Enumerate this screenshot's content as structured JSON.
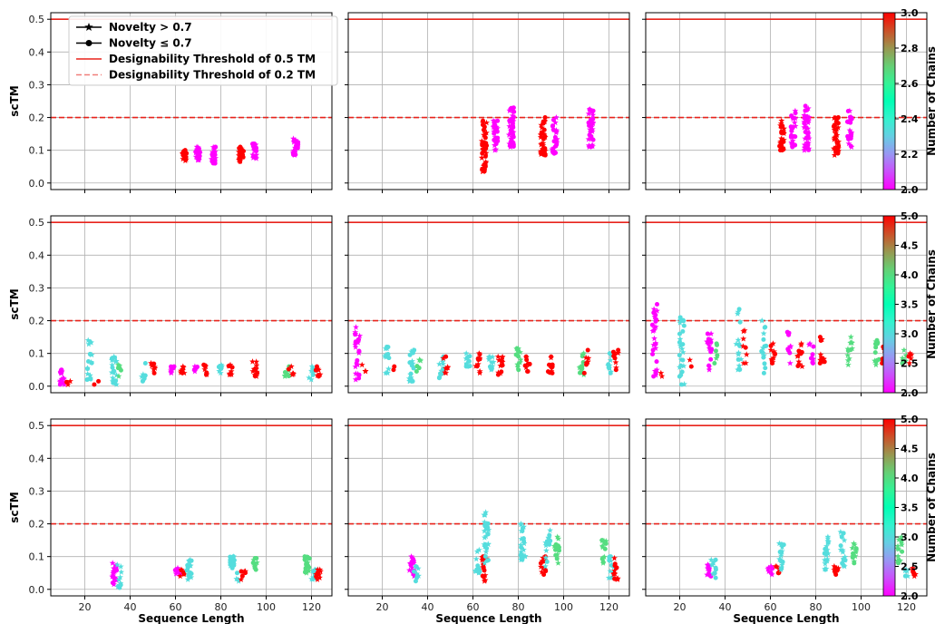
{
  "chart_data": {
    "type": "scatter",
    "grid": true,
    "rows": [
      {
        "colorbar": {
          "label": "Number of Chains",
          "min": 2.0,
          "max": 3.0,
          "ticks": [
            "2.0",
            "2.2",
            "2.4",
            "2.6",
            "2.8",
            "3.0"
          ]
        }
      },
      {
        "colorbar": {
          "label": "Number of Chains",
          "min": 2.0,
          "max": 5.0,
          "ticks": [
            "2.0",
            "2.5",
            "3.0",
            "3.5",
            "4.0",
            "4.5",
            "5.0"
          ]
        }
      },
      {
        "colorbar": {
          "label": "Number of Chains",
          "min": 2.0,
          "max": 5.0,
          "ticks": [
            "2.0",
            "2.5",
            "3.0",
            "3.5",
            "4.0",
            "4.5",
            "5.0"
          ]
        }
      }
    ],
    "ylabel": "scTM",
    "xlabel": "Sequence Length",
    "xlim": [
      5,
      129
    ],
    "ylim": [
      -0.02,
      0.52
    ],
    "xticks": [
      "20",
      "40",
      "60",
      "80",
      "100",
      "120"
    ],
    "yticks": [
      "0.0",
      "0.1",
      "0.2",
      "0.3",
      "0.4",
      "0.5"
    ],
    "threshold_solid": 0.5,
    "threshold_dashed": 0.2,
    "legend": {
      "position": "top-left",
      "entries": [
        {
          "label": "Novelty > 0.7",
          "marker": "star"
        },
        {
          "label": "Novelty ≤ 0.7",
          "marker": "circle"
        },
        {
          "label": "Designability Threshold of 0.5 TM",
          "style": "solid",
          "color": "#e8231b"
        },
        {
          "label": "Designability Threshold of 0.2 TM",
          "style": "dashed",
          "color": "#f07f7a"
        }
      ]
    },
    "colormap": "rainbow",
    "threshold_color": "#e8231b",
    "panels": [
      {
        "row": 0,
        "col": 0,
        "clusters": [
          {
            "x": 64,
            "c": 3,
            "lo": 0.068,
            "hi": 0.1,
            "n": 20
          },
          {
            "x": 70,
            "c": 2,
            "lo": 0.07,
            "hi": 0.11,
            "n": 20
          },
          {
            "x": 77,
            "c": 2,
            "lo": 0.06,
            "hi": 0.11,
            "n": 22
          },
          {
            "x": 89,
            "c": 3,
            "lo": 0.065,
            "hi": 0.11,
            "n": 24
          },
          {
            "x": 95,
            "c": 2,
            "lo": 0.075,
            "hi": 0.12,
            "n": 20
          },
          {
            "x": 113,
            "c": 2,
            "lo": 0.085,
            "hi": 0.135,
            "n": 26
          }
        ]
      },
      {
        "row": 0,
        "col": 1,
        "clusters": [
          {
            "x": 65,
            "c": 3,
            "lo": 0.035,
            "hi": 0.19,
            "n": 40
          },
          {
            "x": 70,
            "c": 2,
            "lo": 0.1,
            "hi": 0.19,
            "n": 24
          },
          {
            "x": 77,
            "c": 2,
            "lo": 0.11,
            "hi": 0.23,
            "n": 40
          },
          {
            "x": 91,
            "c": 3,
            "lo": 0.085,
            "hi": 0.2,
            "n": 40
          },
          {
            "x": 96,
            "c": 2,
            "lo": 0.09,
            "hi": 0.2,
            "n": 26
          },
          {
            "x": 112,
            "c": 2,
            "lo": 0.11,
            "hi": 0.225,
            "n": 36
          }
        ]
      },
      {
        "row": 0,
        "col": 2,
        "clusters": [
          {
            "x": 65,
            "c": 3,
            "lo": 0.1,
            "hi": 0.19,
            "n": 28
          },
          {
            "x": 70,
            "c": 2,
            "lo": 0.11,
            "hi": 0.22,
            "n": 24
          },
          {
            "x": 76,
            "c": 2,
            "lo": 0.1,
            "hi": 0.235,
            "n": 40
          },
          {
            "x": 89,
            "c": 3,
            "lo": 0.085,
            "hi": 0.2,
            "n": 36
          },
          {
            "x": 95,
            "c": 2,
            "lo": 0.11,
            "hi": 0.22,
            "n": 24
          },
          {
            "x": 113,
            "c": 2,
            "lo": 0.12,
            "hi": 0.21,
            "n": 24
          }
        ]
      },
      {
        "row": 1,
        "col": 0,
        "clusters": [
          {
            "x": 10,
            "c": 2,
            "lo": 0.005,
            "hi": 0.05,
            "n": 16
          },
          {
            "x": 13,
            "c": 5,
            "lo": 0.005,
            "hi": 0.015,
            "n": 3
          },
          {
            "x": 22,
            "c": 3,
            "lo": 0.02,
            "hi": 0.14,
            "n": 18
          },
          {
            "x": 25,
            "c": 5,
            "lo": 0.005,
            "hi": 0.015,
            "n": 2
          },
          {
            "x": 33,
            "c": 3,
            "lo": 0.005,
            "hi": 0.09,
            "n": 20
          },
          {
            "x": 35,
            "c": 4,
            "lo": 0.03,
            "hi": 0.065,
            "n": 6
          },
          {
            "x": 46,
            "c": 3,
            "lo": 0.015,
            "hi": 0.07,
            "n": 10
          },
          {
            "x": 50,
            "c": 5,
            "lo": 0.04,
            "hi": 0.07,
            "n": 8
          },
          {
            "x": 59,
            "c": 2,
            "lo": 0.04,
            "hi": 0.06,
            "n": 8
          },
          {
            "x": 63,
            "c": 5,
            "lo": 0.04,
            "hi": 0.06,
            "n": 8
          },
          {
            "x": 69,
            "c": 2,
            "lo": 0.045,
            "hi": 0.06,
            "n": 6
          },
          {
            "x": 73,
            "c": 5,
            "lo": 0.035,
            "hi": 0.065,
            "n": 8
          },
          {
            "x": 80,
            "c": 3,
            "lo": 0.04,
            "hi": 0.065,
            "n": 8
          },
          {
            "x": 84,
            "c": 5,
            "lo": 0.035,
            "hi": 0.065,
            "n": 10
          },
          {
            "x": 95,
            "c": 5,
            "lo": 0.03,
            "hi": 0.075,
            "n": 14
          },
          {
            "x": 109,
            "c": 4,
            "lo": 0.03,
            "hi": 0.06,
            "n": 8
          },
          {
            "x": 111,
            "c": 5,
            "lo": 0.035,
            "hi": 0.06,
            "n": 6
          },
          {
            "x": 120,
            "c": 3,
            "lo": 0.02,
            "hi": 0.06,
            "n": 10
          },
          {
            "x": 123,
            "c": 5,
            "lo": 0.03,
            "hi": 0.06,
            "n": 8
          }
        ]
      },
      {
        "row": 1,
        "col": 1,
        "clusters": [
          {
            "x": 9,
            "c": 2,
            "lo": 0.02,
            "hi": 0.18,
            "n": 24
          },
          {
            "x": 12,
            "c": 5,
            "lo": 0.045,
            "hi": 0.065,
            "n": 3
          },
          {
            "x": 22,
            "c": 3,
            "lo": 0.04,
            "hi": 0.12,
            "n": 14
          },
          {
            "x": 25,
            "c": 5,
            "lo": 0.05,
            "hi": 0.06,
            "n": 2
          },
          {
            "x": 33,
            "c": 3,
            "lo": 0.015,
            "hi": 0.11,
            "n": 18
          },
          {
            "x": 36,
            "c": 4,
            "lo": 0.045,
            "hi": 0.08,
            "n": 6
          },
          {
            "x": 46,
            "c": 3,
            "lo": 0.025,
            "hi": 0.09,
            "n": 12
          },
          {
            "x": 48,
            "c": 5,
            "lo": 0.04,
            "hi": 0.09,
            "n": 8
          },
          {
            "x": 58,
            "c": 3,
            "lo": 0.06,
            "hi": 0.1,
            "n": 10
          },
          {
            "x": 62,
            "c": 5,
            "lo": 0.04,
            "hi": 0.1,
            "n": 12
          },
          {
            "x": 68,
            "c": 3,
            "lo": 0.05,
            "hi": 0.09,
            "n": 10
          },
          {
            "x": 72,
            "c": 5,
            "lo": 0.035,
            "hi": 0.09,
            "n": 14
          },
          {
            "x": 80,
            "c": 4,
            "lo": 0.05,
            "hi": 0.115,
            "n": 14
          },
          {
            "x": 84,
            "c": 5,
            "lo": 0.045,
            "hi": 0.09,
            "n": 10
          },
          {
            "x": 94,
            "c": 5,
            "lo": 0.04,
            "hi": 0.09,
            "n": 12
          },
          {
            "x": 108,
            "c": 4,
            "lo": 0.035,
            "hi": 0.1,
            "n": 12
          },
          {
            "x": 110,
            "c": 5,
            "lo": 0.04,
            "hi": 0.11,
            "n": 8
          },
          {
            "x": 120,
            "c": 3,
            "lo": 0.04,
            "hi": 0.1,
            "n": 10
          },
          {
            "x": 123,
            "c": 5,
            "lo": 0.05,
            "hi": 0.11,
            "n": 10
          }
        ]
      },
      {
        "row": 1,
        "col": 2,
        "clusters": [
          {
            "x": 9,
            "c": 2,
            "lo": 0.03,
            "hi": 0.25,
            "n": 26
          },
          {
            "x": 12,
            "c": 5,
            "lo": 0.03,
            "hi": 0.04,
            "n": 2
          },
          {
            "x": 21,
            "c": 3,
            "lo": 0.005,
            "hi": 0.21,
            "n": 26
          },
          {
            "x": 25,
            "c": 5,
            "lo": 0.06,
            "hi": 0.08,
            "n": 2
          },
          {
            "x": 33,
            "c": 2,
            "lo": 0.05,
            "hi": 0.16,
            "n": 16
          },
          {
            "x": 36,
            "c": 4,
            "lo": 0.07,
            "hi": 0.13,
            "n": 6
          },
          {
            "x": 46,
            "c": 3,
            "lo": 0.05,
            "hi": 0.235,
            "n": 16
          },
          {
            "x": 49,
            "c": 5,
            "lo": 0.07,
            "hi": 0.17,
            "n": 8
          },
          {
            "x": 57,
            "c": 3,
            "lo": 0.04,
            "hi": 0.2,
            "n": 16
          },
          {
            "x": 61,
            "c": 5,
            "lo": 0.07,
            "hi": 0.13,
            "n": 12
          },
          {
            "x": 68,
            "c": 2,
            "lo": 0.07,
            "hi": 0.165,
            "n": 10
          },
          {
            "x": 73,
            "c": 5,
            "lo": 0.06,
            "hi": 0.13,
            "n": 12
          },
          {
            "x": 78,
            "c": 2,
            "lo": 0.07,
            "hi": 0.13,
            "n": 8
          },
          {
            "x": 83,
            "c": 5,
            "lo": 0.07,
            "hi": 0.15,
            "n": 12
          },
          {
            "x": 95,
            "c": 4,
            "lo": 0.065,
            "hi": 0.15,
            "n": 12
          },
          {
            "x": 107,
            "c": 4,
            "lo": 0.065,
            "hi": 0.14,
            "n": 12
          },
          {
            "x": 110,
            "c": 5,
            "lo": 0.07,
            "hi": 0.12,
            "n": 8
          },
          {
            "x": 119,
            "c": 4,
            "lo": 0.07,
            "hi": 0.11,
            "n": 8
          },
          {
            "x": 122,
            "c": 5,
            "lo": 0.07,
            "hi": 0.1,
            "n": 6
          }
        ]
      },
      {
        "row": 2,
        "col": 0,
        "clusters": [
          {
            "x": 33,
            "c": 2,
            "lo": 0.015,
            "hi": 0.08,
            "n": 22
          },
          {
            "x": 35,
            "c": 3,
            "lo": 0.005,
            "hi": 0.075,
            "n": 10
          },
          {
            "x": 61,
            "c": 2,
            "lo": 0.045,
            "hi": 0.065,
            "n": 8
          },
          {
            "x": 63,
            "c": 5,
            "lo": 0.04,
            "hi": 0.06,
            "n": 6
          },
          {
            "x": 66,
            "c": 3,
            "lo": 0.03,
            "hi": 0.09,
            "n": 18
          },
          {
            "x": 85,
            "c": 3,
            "lo": 0.065,
            "hi": 0.1,
            "n": 16
          },
          {
            "x": 88,
            "c": 3,
            "lo": 0.025,
            "hi": 0.05,
            "n": 4
          },
          {
            "x": 90,
            "c": 5,
            "lo": 0.03,
            "hi": 0.055,
            "n": 6
          },
          {
            "x": 95,
            "c": 4,
            "lo": 0.06,
            "hi": 0.095,
            "n": 10
          },
          {
            "x": 118,
            "c": 4,
            "lo": 0.05,
            "hi": 0.1,
            "n": 20
          },
          {
            "x": 121,
            "c": 3,
            "lo": 0.03,
            "hi": 0.06,
            "n": 10
          },
          {
            "x": 123,
            "c": 5,
            "lo": 0.03,
            "hi": 0.06,
            "n": 10
          }
        ]
      },
      {
        "row": 2,
        "col": 1,
        "clusters": [
          {
            "x": 33,
            "c": 2,
            "lo": 0.04,
            "hi": 0.1,
            "n": 16
          },
          {
            "x": 35,
            "c": 3,
            "lo": 0.025,
            "hi": 0.07,
            "n": 8
          },
          {
            "x": 62,
            "c": 3,
            "lo": 0.05,
            "hi": 0.12,
            "n": 12
          },
          {
            "x": 65,
            "c": 5,
            "lo": 0.025,
            "hi": 0.1,
            "n": 16
          },
          {
            "x": 66,
            "c": 3,
            "lo": 0.08,
            "hi": 0.235,
            "n": 26
          },
          {
            "x": 82,
            "c": 3,
            "lo": 0.09,
            "hi": 0.2,
            "n": 24
          },
          {
            "x": 91,
            "c": 5,
            "lo": 0.045,
            "hi": 0.1,
            "n": 12
          },
          {
            "x": 93,
            "c": 3,
            "lo": 0.07,
            "hi": 0.18,
            "n": 16
          },
          {
            "x": 97,
            "c": 4,
            "lo": 0.08,
            "hi": 0.16,
            "n": 14
          },
          {
            "x": 118,
            "c": 4,
            "lo": 0.08,
            "hi": 0.15,
            "n": 14
          },
          {
            "x": 121,
            "c": 3,
            "lo": 0.035,
            "hi": 0.1,
            "n": 12
          },
          {
            "x": 123,
            "c": 5,
            "lo": 0.03,
            "hi": 0.095,
            "n": 12
          }
        ]
      },
      {
        "row": 2,
        "col": 2,
        "clusters": [
          {
            "x": 33,
            "c": 2,
            "lo": 0.04,
            "hi": 0.075,
            "n": 10
          },
          {
            "x": 35,
            "c": 3,
            "lo": 0.035,
            "hi": 0.09,
            "n": 10
          },
          {
            "x": 60,
            "c": 2,
            "lo": 0.045,
            "hi": 0.07,
            "n": 8
          },
          {
            "x": 63,
            "c": 5,
            "lo": 0.05,
            "hi": 0.07,
            "n": 6
          },
          {
            "x": 65,
            "c": 3,
            "lo": 0.06,
            "hi": 0.14,
            "n": 16
          },
          {
            "x": 85,
            "c": 3,
            "lo": 0.06,
            "hi": 0.16,
            "n": 20
          },
          {
            "x": 89,
            "c": 5,
            "lo": 0.045,
            "hi": 0.07,
            "n": 8
          },
          {
            "x": 92,
            "c": 3,
            "lo": 0.07,
            "hi": 0.175,
            "n": 18
          },
          {
            "x": 97,
            "c": 4,
            "lo": 0.08,
            "hi": 0.14,
            "n": 12
          },
          {
            "x": 117,
            "c": 4,
            "lo": 0.08,
            "hi": 0.16,
            "n": 14
          },
          {
            "x": 120,
            "c": 3,
            "lo": 0.04,
            "hi": 0.06,
            "n": 6
          },
          {
            "x": 123,
            "c": 5,
            "lo": 0.04,
            "hi": 0.065,
            "n": 6
          }
        ]
      }
    ]
  }
}
